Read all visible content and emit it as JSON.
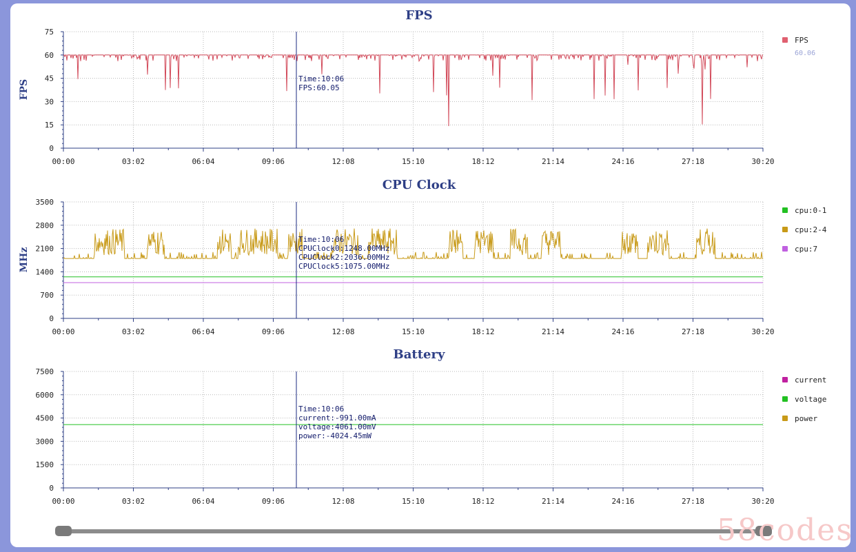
{
  "x_ticks": [
    "00:00",
    "03:02",
    "06:04",
    "09:06",
    "12:08",
    "15:10",
    "18:12",
    "21:14",
    "24:16",
    "27:18",
    "30:20"
  ],
  "cursor_time": "10:06",
  "charts": [
    {
      "id": "fps",
      "title": "FPS",
      "ylabel": "FPS",
      "y_ticks": [
        "75",
        "60",
        "45",
        "30",
        "15",
        "0"
      ],
      "ylim": [
        0,
        75
      ],
      "legend": [
        {
          "label": "FPS",
          "color": "#e06070",
          "sub": "60.06"
        }
      ],
      "tooltip": [
        "Time:10:06",
        "FPS:60.05"
      ],
      "series": [
        {
          "name": "FPS",
          "color": "#d24a5a",
          "base": 60,
          "min_dip": 14,
          "kind": "fps"
        }
      ]
    },
    {
      "id": "cpu",
      "title": "CPU Clock",
      "ylabel": "MHz",
      "y_ticks": [
        "3500",
        "2800",
        "2100",
        "1400",
        "700",
        "0"
      ],
      "ylim": [
        0,
        3500
      ],
      "legend": [
        {
          "label": "cpu:0-1",
          "color": "#22c022"
        },
        {
          "label": "cpu:2-4",
          "color": "#c89a18"
        },
        {
          "label": "cpu:7",
          "color": "#c060e0"
        }
      ],
      "tooltip": [
        "Time:10:06",
        "CPUClock0:1248.00MHz",
        "CPUClock2:2036.00MHz",
        "CPUClock5:1075.00MHz"
      ],
      "series": [
        {
          "name": "cpu:0-1",
          "color": "#22c022",
          "value": 1248,
          "kind": "flat"
        },
        {
          "name": "cpu:2-4",
          "color": "#c89a18",
          "low": 1800,
          "high": 2700,
          "kind": "noisy"
        },
        {
          "name": "cpu:7",
          "color": "#c060e0",
          "value": 1075,
          "kind": "flat"
        }
      ]
    },
    {
      "id": "battery",
      "title": "Battery",
      "ylabel": "",
      "y_ticks": [
        "7500",
        "6000",
        "4500",
        "3000",
        "1500",
        "0"
      ],
      "ylim": [
        0,
        7500
      ],
      "legend": [
        {
          "label": "current",
          "color": "#c020a0"
        },
        {
          "label": "voltage",
          "color": "#22c022"
        },
        {
          "label": "power",
          "color": "#c89a18"
        }
      ],
      "tooltip": [
        "Time:10:06",
        "current:-991.00mA",
        "voltage:4061.00mV",
        "power:-4024.45mW"
      ],
      "series": [
        {
          "name": "voltage",
          "color": "#22c022",
          "value": 4080,
          "kind": "flat"
        }
      ]
    }
  ],
  "watermark": "58codes"
}
